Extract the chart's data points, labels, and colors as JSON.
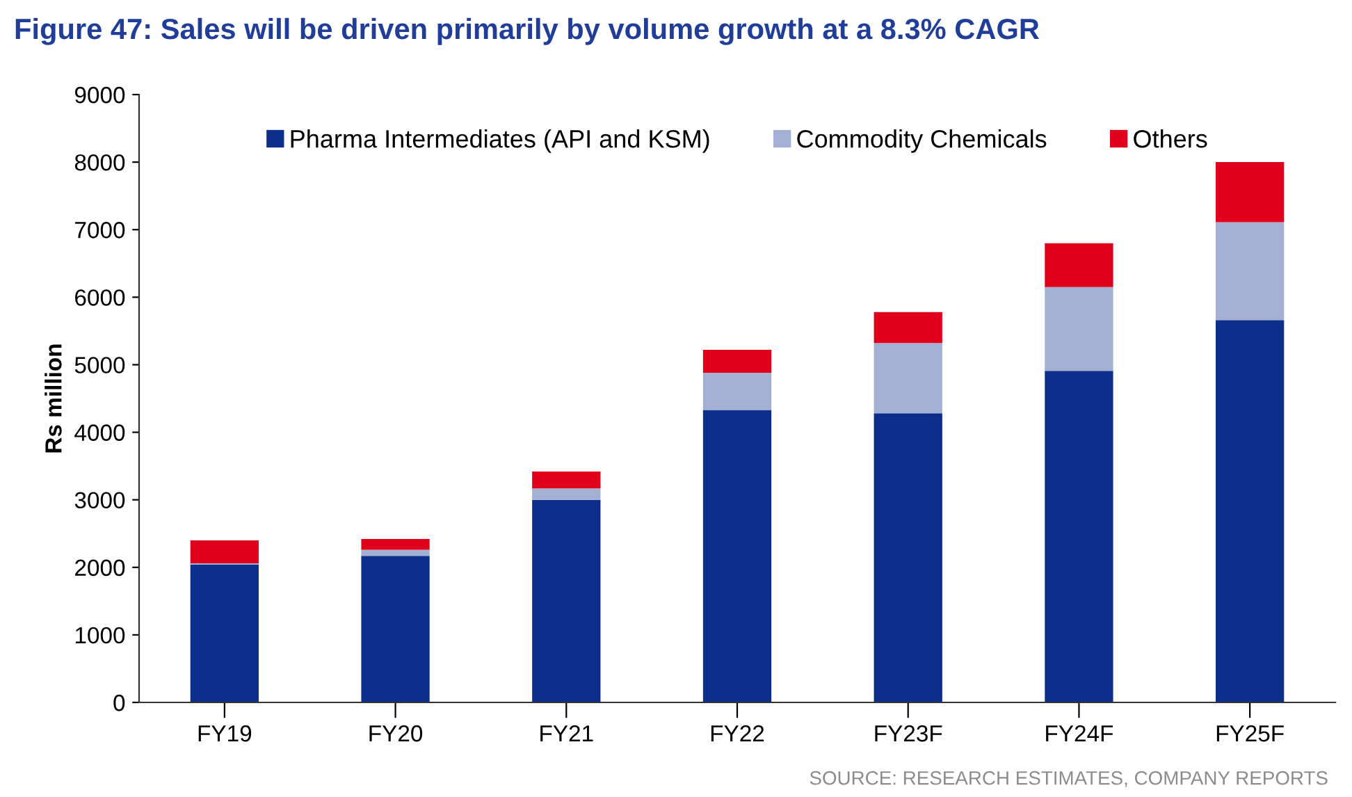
{
  "chart_data": {
    "type": "bar",
    "title": "Figure 47: Sales will be driven primarily by volume growth at a 8.3% CAGR",
    "ylabel": "Rs million",
    "categories": [
      "FY19",
      "FY20",
      "FY21",
      "FY22",
      "FY23F",
      "FY24F",
      "FY25F"
    ],
    "stacked": true,
    "series": [
      {
        "name": "Pharma Intermediates (API and KSM)",
        "color": "#0d2f8c",
        "values": [
          2040,
          2170,
          3000,
          4330,
          4280,
          4910,
          5660
        ]
      },
      {
        "name": "Commodity Chemicals",
        "color": "#a3b0d4",
        "values": [
          20,
          90,
          170,
          550,
          1040,
          1240,
          1450
        ]
      },
      {
        "name": "Others",
        "color": "#e0001b",
        "values": [
          340,
          160,
          250,
          340,
          460,
          650,
          890
        ]
      }
    ],
    "ylim": [
      0,
      9000
    ],
    "yticks": [
      0,
      1000,
      2000,
      3000,
      4000,
      5000,
      6000,
      7000,
      8000,
      9000
    ],
    "grid": false,
    "legend": "top",
    "annotations": [
      "SOURCE: RESEARCH ESTIMATES, COMPANY REPORTS"
    ]
  }
}
